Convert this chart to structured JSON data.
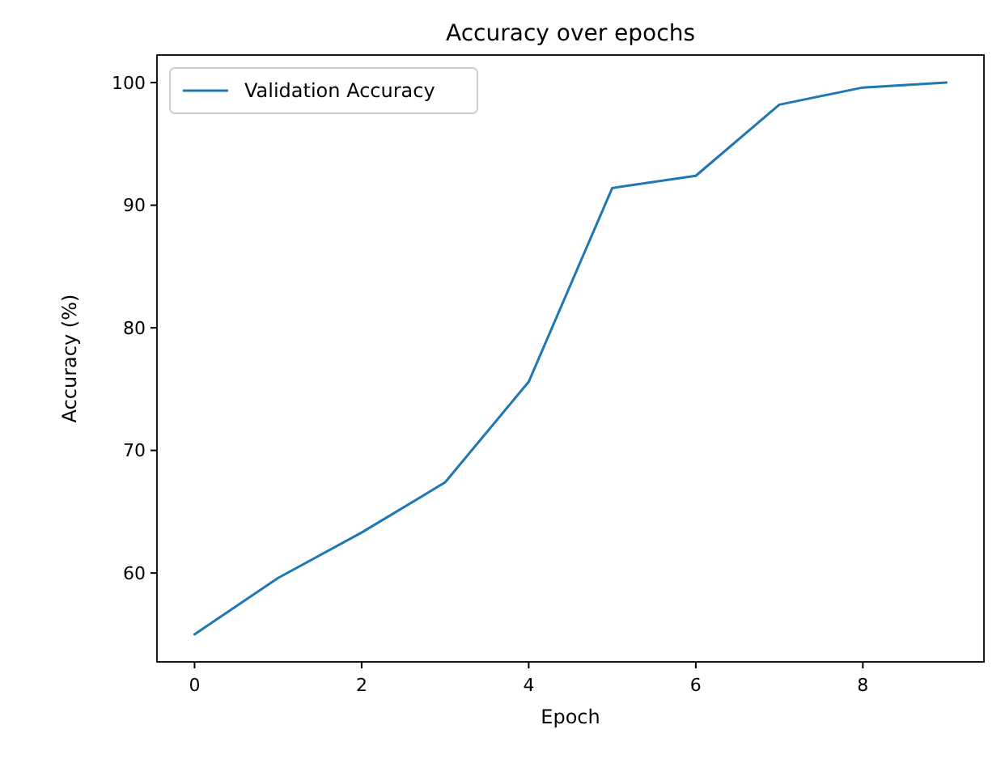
{
  "chart_data": {
    "type": "line",
    "title": "Accuracy over epochs",
    "xlabel": "Epoch",
    "ylabel": "Accuracy (%)",
    "x": [
      0,
      1,
      2,
      3,
      4,
      5,
      6,
      7,
      8,
      9
    ],
    "series": [
      {
        "name": "Validation Accuracy",
        "color": "#1f77b4",
        "values": [
          55.0,
          59.6,
          63.3,
          67.4,
          75.6,
          91.4,
          92.4,
          98.2,
          99.6,
          100.0
        ]
      }
    ],
    "xlim": [
      -0.45,
      9.45
    ],
    "xticks": [
      0,
      2,
      4,
      6,
      8
    ],
    "ylim": [
      52.75,
      102.25
    ],
    "yticks": [
      60,
      70,
      80,
      90,
      100
    ],
    "grid": false,
    "legend": "top left",
    "marker": "none",
    "line_style": "solid"
  }
}
